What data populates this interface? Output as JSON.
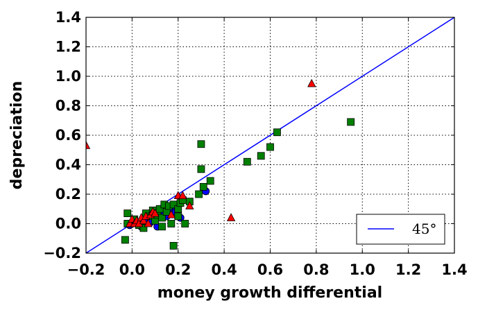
{
  "chart_data": {
    "type": "scatter",
    "title": "",
    "xlabel": "money growth differential",
    "ylabel": "depreciation",
    "xlim": [
      -0.2,
      1.4
    ],
    "ylim": [
      -0.2,
      1.4
    ],
    "xticks": [
      "−0.2",
      "0.0",
      "0.2",
      "0.4",
      "0.6",
      "0.8",
      "1.0",
      "1.2",
      "1.4"
    ],
    "yticks": [
      "−0.2",
      "0.0",
      "0.2",
      "0.4",
      "0.6",
      "0.8",
      "1.0",
      "1.2",
      "1.4"
    ],
    "grid": true,
    "legend_position": "lower-right",
    "reference_line": {
      "label": "45°",
      "color": "#0000ff",
      "x": [
        -0.2,
        1.4
      ],
      "y": [
        -0.2,
        1.4
      ]
    },
    "series": [
      {
        "marker": "circle",
        "color": "#0000ff",
        "points": [
          [
            -0.01,
            -0.01
          ],
          [
            0.0,
            0.0
          ],
          [
            0.02,
            0.01
          ],
          [
            0.04,
            -0.02
          ],
          [
            0.05,
            0.02
          ],
          [
            0.07,
            0.03
          ],
          [
            0.08,
            0.01
          ],
          [
            0.1,
            0.04
          ],
          [
            0.11,
            -0.02
          ],
          [
            0.12,
            0.06
          ],
          [
            0.14,
            0.08
          ],
          [
            0.15,
            0.05
          ],
          [
            0.17,
            0.1
          ],
          [
            0.19,
            0.08
          ],
          [
            0.21,
            0.04
          ],
          [
            0.32,
            0.22
          ]
        ]
      },
      {
        "marker": "square",
        "color": "#008000",
        "points": [
          [
            -0.02,
            0.07
          ],
          [
            -0.03,
            -0.11
          ],
          [
            -0.02,
            0.0
          ],
          [
            0.01,
            0.03
          ],
          [
            0.03,
            -0.01
          ],
          [
            0.05,
            -0.03
          ],
          [
            0.06,
            0.07
          ],
          [
            0.08,
            0.05
          ],
          [
            0.09,
            0.09
          ],
          [
            0.1,
            0.02
          ],
          [
            0.11,
            0.06
          ],
          [
            0.12,
            0.1
          ],
          [
            0.13,
            -0.02
          ],
          [
            0.13,
            0.04
          ],
          [
            0.14,
            0.13
          ],
          [
            0.15,
            0.08
          ],
          [
            0.16,
            0.12
          ],
          [
            0.17,
            0.0
          ],
          [
            0.18,
            0.13
          ],
          [
            0.18,
            -0.15
          ],
          [
            0.2,
            0.05
          ],
          [
            0.2,
            0.1
          ],
          [
            0.21,
            0.14
          ],
          [
            0.22,
            0.16
          ],
          [
            0.23,
            0.0
          ],
          [
            0.25,
            0.15
          ],
          [
            0.29,
            0.2
          ],
          [
            0.3,
            0.37
          ],
          [
            0.31,
            0.25
          ],
          [
            0.3,
            0.54
          ],
          [
            0.34,
            0.29
          ],
          [
            0.5,
            0.42
          ],
          [
            0.56,
            0.46
          ],
          [
            0.6,
            0.52
          ],
          [
            0.63,
            0.62
          ],
          [
            0.95,
            0.69
          ]
        ]
      },
      {
        "marker": "triangle",
        "color": "#ff0000",
        "points": [
          [
            -0.2,
            0.53
          ],
          [
            -0.01,
            0.0
          ],
          [
            0.0,
            0.03
          ],
          [
            0.01,
            0.0
          ],
          [
            0.02,
            0.02
          ],
          [
            0.03,
            0.0
          ],
          [
            0.04,
            0.04
          ],
          [
            0.05,
            0.02
          ],
          [
            0.06,
            0.05
          ],
          [
            0.07,
            0.0
          ],
          [
            0.08,
            0.06
          ],
          [
            0.09,
            0.08
          ],
          [
            0.1,
            0.07
          ],
          [
            0.17,
            0.06
          ],
          [
            0.2,
            0.19
          ],
          [
            0.22,
            0.19
          ],
          [
            0.25,
            0.12
          ],
          [
            0.43,
            0.04
          ],
          [
            0.78,
            0.95
          ]
        ]
      }
    ]
  }
}
